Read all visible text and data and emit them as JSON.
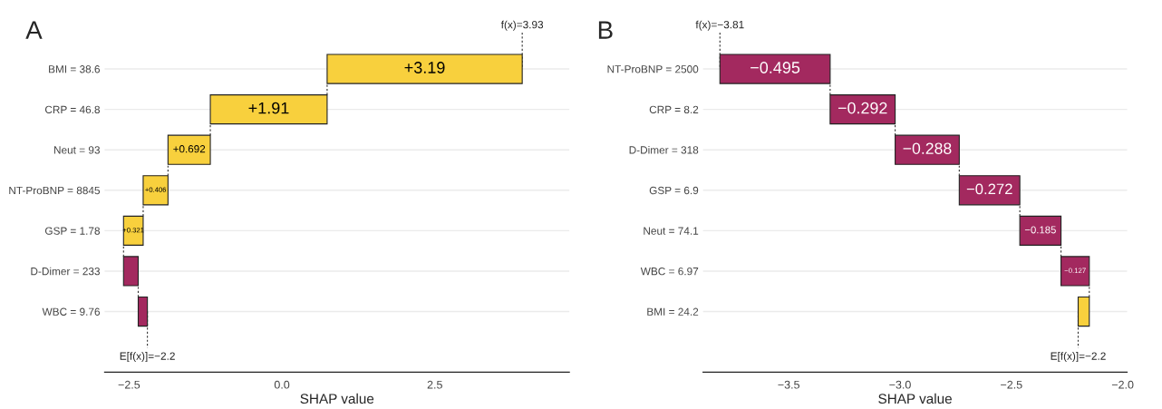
{
  "chart_data": [
    {
      "type": "bar",
      "title": "A",
      "orientation": "horizontal",
      "xlabel": "SHAP value",
      "categories": [
        "BMI = 38.6",
        "CRP = 46.8",
        "Neut = 93",
        "NT-ProBNP = 8845",
        "GSP = 1.78",
        "D-Dimer = 233",
        "WBC = 9.76"
      ],
      "values": [
        3.19,
        1.91,
        0.692,
        0.406,
        0.321,
        -0.24,
        -0.15
      ],
      "base": [
        0.739,
        -1.171,
        -1.863,
        -2.269,
        -2.59,
        -2.35,
        -2.2
      ],
      "colors": [
        "#f8d03d",
        "#f8d03d",
        "#f8d03d",
        "#f8d03d",
        "#f8d03d",
        "#a3295f",
        "#a3295f"
      ],
      "value_labels": [
        "+3.19",
        "+1.91",
        "+0.692",
        "+0.406",
        "+0.321",
        null,
        null
      ],
      "xlim": [
        -2.9,
        4.7
      ],
      "xticks": [
        {
          "value": -2.5,
          "label": "−2.5"
        },
        {
          "value": 0,
          "label": "0.0"
        },
        {
          "value": 2.5,
          "label": "2.5"
        }
      ],
      "grid": "y",
      "annotations": [
        {
          "text": "f(x)=3.93",
          "x": 3.929,
          "y": "BMI = 38.6"
        },
        {
          "text": "E[f(x)]=−2.2",
          "x": -2.2,
          "y": "WBC = 9.76"
        }
      ]
    },
    {
      "type": "bar",
      "title": "B",
      "orientation": "horizontal",
      "xlabel": "SHAP value",
      "categories": [
        "NT-ProBNP = 2500",
        "CRP = 8.2",
        "D-Dimer = 318",
        "GSP = 6.9",
        "Neut = 74.1",
        "WBC = 6.97",
        "BMI = 24.2"
      ],
      "values": [
        -0.495,
        -0.292,
        -0.288,
        -0.272,
        -0.185,
        -0.127,
        0.05
      ],
      "base": [
        -3.314,
        -3.022,
        -2.734,
        -2.462,
        -2.277,
        -2.15,
        -2.2
      ],
      "colors": [
        "#a3295f",
        "#a3295f",
        "#a3295f",
        "#a3295f",
        "#a3295f",
        "#a3295f",
        "#f8d03d"
      ],
      "value_labels": [
        "−0.495",
        "−0.292",
        "−0.288",
        "−0.272",
        "−0.185",
        "−0.127",
        null
      ],
      "xlim": [
        -3.885,
        -1.98
      ],
      "xticks": [
        {
          "value": -3.5,
          "label": "−3.5"
        },
        {
          "value": -3.0,
          "label": "−3.0"
        },
        {
          "value": -2.5,
          "label": "−2.5"
        },
        {
          "value": -2.0,
          "label": "−2.0"
        }
      ],
      "grid": "y",
      "annotations": [
        {
          "text": "f(x)=−3.81",
          "x": -3.809,
          "y": "NT-ProBNP = 2500"
        },
        {
          "text": "E[f(x)]=−2.2",
          "x": -2.2,
          "y": "BMI = 24.2"
        }
      ]
    }
  ]
}
